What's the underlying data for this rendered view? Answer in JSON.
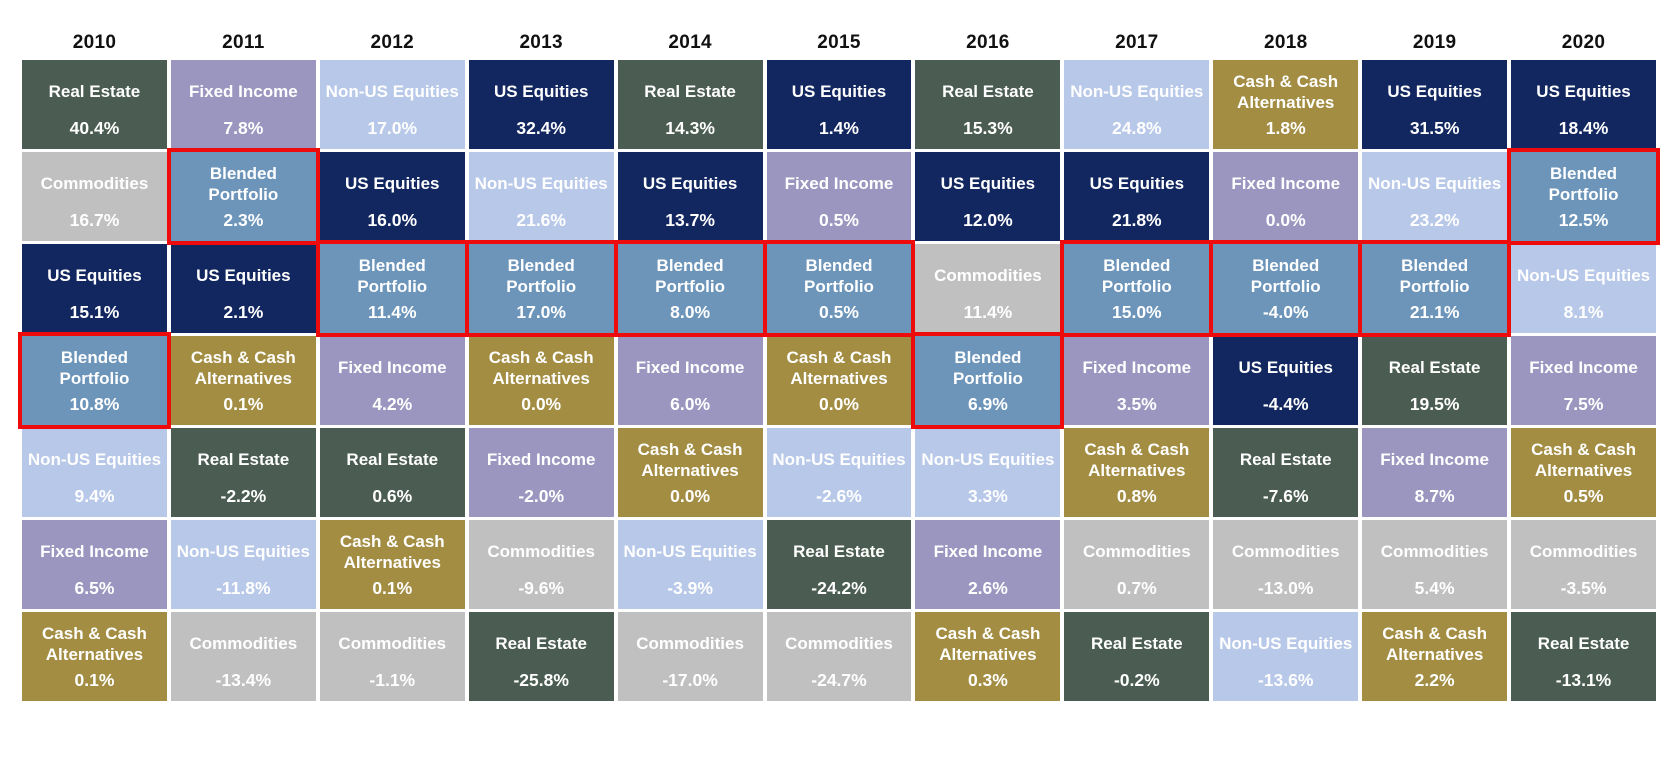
{
  "chart_data": {
    "type": "table",
    "description": "Annual asset class returns ranked best-to-worst per year (quilt chart), 2010-2020",
    "grid": "on",
    "legend_position": "none",
    "highlight_color": "#ee0b0b",
    "highlighted_asset": "Blended Portfolio",
    "asset_colors": {
      "real_estate": "#4b5d53",
      "fixed_income": "#9a96bf",
      "non_us_equities": "#b8c8e8",
      "us_equities": "#12275f",
      "cash": "#a38d43",
      "commodities": "#c1c0c0",
      "blended": "#6d95ba"
    },
    "text_color": "#ffffff",
    "columns": [
      {
        "year": "2010",
        "cells": [
          {
            "asset": "Real Estate",
            "value": "40.4%",
            "key": "real_estate",
            "highlight": false
          },
          {
            "asset": "Commodities",
            "value": "16.7%",
            "key": "commodities",
            "highlight": false
          },
          {
            "asset": "US Equities",
            "value": "15.1%",
            "key": "us_equities",
            "highlight": false
          },
          {
            "asset": "Blended Portfolio",
            "value": "10.8%",
            "key": "blended",
            "highlight": true
          },
          {
            "asset": "Non-US Equities",
            "value": "9.4%",
            "key": "non_us_equities",
            "highlight": false
          },
          {
            "asset": "Fixed Income",
            "value": "6.5%",
            "key": "fixed_income",
            "highlight": false
          },
          {
            "asset": "Cash & Cash Alternatives",
            "value": "0.1%",
            "key": "cash",
            "highlight": false
          }
        ]
      },
      {
        "year": "2011",
        "cells": [
          {
            "asset": "Fixed Income",
            "value": "7.8%",
            "key": "fixed_income",
            "highlight": false
          },
          {
            "asset": "Blended Portfolio",
            "value": "2.3%",
            "key": "blended",
            "highlight": true
          },
          {
            "asset": "US Equities",
            "value": "2.1%",
            "key": "us_equities",
            "highlight": false
          },
          {
            "asset": "Cash & Cash Alternatives",
            "value": "0.1%",
            "key": "cash",
            "highlight": false
          },
          {
            "asset": "Real Estate",
            "value": "-2.2%",
            "key": "real_estate",
            "highlight": false
          },
          {
            "asset": "Non-US Equities",
            "value": "-11.8%",
            "key": "non_us_equities",
            "highlight": false
          },
          {
            "asset": "Commodities",
            "value": "-13.4%",
            "key": "commodities",
            "highlight": false
          }
        ]
      },
      {
        "year": "2012",
        "cells": [
          {
            "asset": "Non-US Equities",
            "value": "17.0%",
            "key": "non_us_equities",
            "highlight": false
          },
          {
            "asset": "US Equities",
            "value": "16.0%",
            "key": "us_equities",
            "highlight": false
          },
          {
            "asset": "Blended Portfolio",
            "value": "11.4%",
            "key": "blended",
            "highlight": true
          },
          {
            "asset": "Fixed Income",
            "value": "4.2%",
            "key": "fixed_income",
            "highlight": false
          },
          {
            "asset": "Real Estate",
            "value": "0.6%",
            "key": "real_estate",
            "highlight": false
          },
          {
            "asset": "Cash & Cash Alternatives",
            "value": "0.1%",
            "key": "cash",
            "highlight": false
          },
          {
            "asset": "Commodities",
            "value": "-1.1%",
            "key": "commodities",
            "highlight": false
          }
        ]
      },
      {
        "year": "2013",
        "cells": [
          {
            "asset": "US Equities",
            "value": "32.4%",
            "key": "us_equities",
            "highlight": false
          },
          {
            "asset": "Non-US Equities",
            "value": "21.6%",
            "key": "non_us_equities",
            "highlight": false
          },
          {
            "asset": "Blended Portfolio",
            "value": "17.0%",
            "key": "blended",
            "highlight": true
          },
          {
            "asset": "Cash & Cash Alternatives",
            "value": "0.0%",
            "key": "cash",
            "highlight": false
          },
          {
            "asset": "Fixed Income",
            "value": "-2.0%",
            "key": "fixed_income",
            "highlight": false
          },
          {
            "asset": "Commodities",
            "value": "-9.6%",
            "key": "commodities",
            "highlight": false
          },
          {
            "asset": "Real Estate",
            "value": "-25.8%",
            "key": "real_estate",
            "highlight": false
          }
        ]
      },
      {
        "year": "2014",
        "cells": [
          {
            "asset": "Real Estate",
            "value": "14.3%",
            "key": "real_estate",
            "highlight": false
          },
          {
            "asset": "US Equities",
            "value": "13.7%",
            "key": "us_equities",
            "highlight": false
          },
          {
            "asset": "Blended Portfolio",
            "value": "8.0%",
            "key": "blended",
            "highlight": true
          },
          {
            "asset": "Fixed Income",
            "value": "6.0%",
            "key": "fixed_income",
            "highlight": false
          },
          {
            "asset": "Cash & Cash Alternatives",
            "value": "0.0%",
            "key": "cash",
            "highlight": false
          },
          {
            "asset": "Non-US Equities",
            "value": "-3.9%",
            "key": "non_us_equities",
            "highlight": false
          },
          {
            "asset": "Commodities",
            "value": "-17.0%",
            "key": "commodities",
            "highlight": false
          }
        ]
      },
      {
        "year": "2015",
        "cells": [
          {
            "asset": "US Equities",
            "value": "1.4%",
            "key": "us_equities",
            "highlight": false
          },
          {
            "asset": "Fixed Income",
            "value": "0.5%",
            "key": "fixed_income",
            "highlight": false
          },
          {
            "asset": "Blended Portfolio",
            "value": "0.5%",
            "key": "blended",
            "highlight": true
          },
          {
            "asset": "Cash & Cash Alternatives",
            "value": "0.0%",
            "key": "cash",
            "highlight": false
          },
          {
            "asset": "Non-US Equities",
            "value": "-2.6%",
            "key": "non_us_equities",
            "highlight": false
          },
          {
            "asset": "Real Estate",
            "value": "-24.2%",
            "key": "real_estate",
            "highlight": false
          },
          {
            "asset": "Commodities",
            "value": "-24.7%",
            "key": "commodities",
            "highlight": false
          }
        ]
      },
      {
        "year": "2016",
        "cells": [
          {
            "asset": "Real Estate",
            "value": "15.3%",
            "key": "real_estate",
            "highlight": false
          },
          {
            "asset": "US Equities",
            "value": "12.0%",
            "key": "us_equities",
            "highlight": false
          },
          {
            "asset": "Commodities",
            "value": "11.4%",
            "key": "commodities",
            "highlight": false
          },
          {
            "asset": "Blended Portfolio",
            "value": "6.9%",
            "key": "blended",
            "highlight": true
          },
          {
            "asset": "Non-US Equities",
            "value": "3.3%",
            "key": "non_us_equities",
            "highlight": false
          },
          {
            "asset": "Fixed Income",
            "value": "2.6%",
            "key": "fixed_income",
            "highlight": false
          },
          {
            "asset": "Cash & Cash Alternatives",
            "value": "0.3%",
            "key": "cash",
            "highlight": false
          }
        ]
      },
      {
        "year": "2017",
        "cells": [
          {
            "asset": "Non-US Equities",
            "value": "24.8%",
            "key": "non_us_equities",
            "highlight": false
          },
          {
            "asset": "US Equities",
            "value": "21.8%",
            "key": "us_equities",
            "highlight": false
          },
          {
            "asset": "Blended Portfolio",
            "value": "15.0%",
            "key": "blended",
            "highlight": true
          },
          {
            "asset": "Fixed Income",
            "value": "3.5%",
            "key": "fixed_income",
            "highlight": false
          },
          {
            "asset": "Cash & Cash Alternatives",
            "value": "0.8%",
            "key": "cash",
            "highlight": false
          },
          {
            "asset": "Commodities",
            "value": "0.7%",
            "key": "commodities",
            "highlight": false
          },
          {
            "asset": "Real Estate",
            "value": "-0.2%",
            "key": "real_estate",
            "highlight": false
          }
        ]
      },
      {
        "year": "2018",
        "cells": [
          {
            "asset": "Cash & Cash Alternatives",
            "value": "1.8%",
            "key": "cash",
            "highlight": false
          },
          {
            "asset": "Fixed Income",
            "value": "0.0%",
            "key": "fixed_income",
            "highlight": false
          },
          {
            "asset": "Blended Portfolio",
            "value": "-4.0%",
            "key": "blended",
            "highlight": true
          },
          {
            "asset": "US Equities",
            "value": "-4.4%",
            "key": "us_equities",
            "highlight": false
          },
          {
            "asset": "Real Estate",
            "value": "-7.6%",
            "key": "real_estate",
            "highlight": false
          },
          {
            "asset": "Commodities",
            "value": "-13.0%",
            "key": "commodities",
            "highlight": false
          },
          {
            "asset": "Non-US Equities",
            "value": "-13.6%",
            "key": "non_us_equities",
            "highlight": false
          }
        ]
      },
      {
        "year": "2019",
        "cells": [
          {
            "asset": "US Equities",
            "value": "31.5%",
            "key": "us_equities",
            "highlight": false
          },
          {
            "asset": "Non-US Equities",
            "value": "23.2%",
            "key": "non_us_equities",
            "highlight": false
          },
          {
            "asset": "Blended Portfolio",
            "value": "21.1%",
            "key": "blended",
            "highlight": true
          },
          {
            "asset": "Real Estate",
            "value": "19.5%",
            "key": "real_estate",
            "highlight": false
          },
          {
            "asset": "Fixed Income",
            "value": "8.7%",
            "key": "fixed_income",
            "highlight": false
          },
          {
            "asset": "Commodities",
            "value": "5.4%",
            "key": "commodities",
            "highlight": false
          },
          {
            "asset": "Cash & Cash Alternatives",
            "value": "2.2%",
            "key": "cash",
            "highlight": false
          }
        ]
      },
      {
        "year": "2020",
        "cells": [
          {
            "asset": "US Equities",
            "value": "18.4%",
            "key": "us_equities",
            "highlight": false
          },
          {
            "asset": "Blended Portfolio",
            "value": "12.5%",
            "key": "blended",
            "highlight": true
          },
          {
            "asset": "Non-US Equities",
            "value": "8.1%",
            "key": "non_us_equities",
            "highlight": false
          },
          {
            "asset": "Fixed Income",
            "value": "7.5%",
            "key": "fixed_income",
            "highlight": false
          },
          {
            "asset": "Cash & Cash Alternatives",
            "value": "0.5%",
            "key": "cash",
            "highlight": false
          },
          {
            "asset": "Commodities",
            "value": "-3.5%",
            "key": "commodities",
            "highlight": false
          },
          {
            "asset": "Real Estate",
            "value": "-13.1%",
            "key": "real_estate",
            "highlight": false
          }
        ]
      }
    ]
  }
}
